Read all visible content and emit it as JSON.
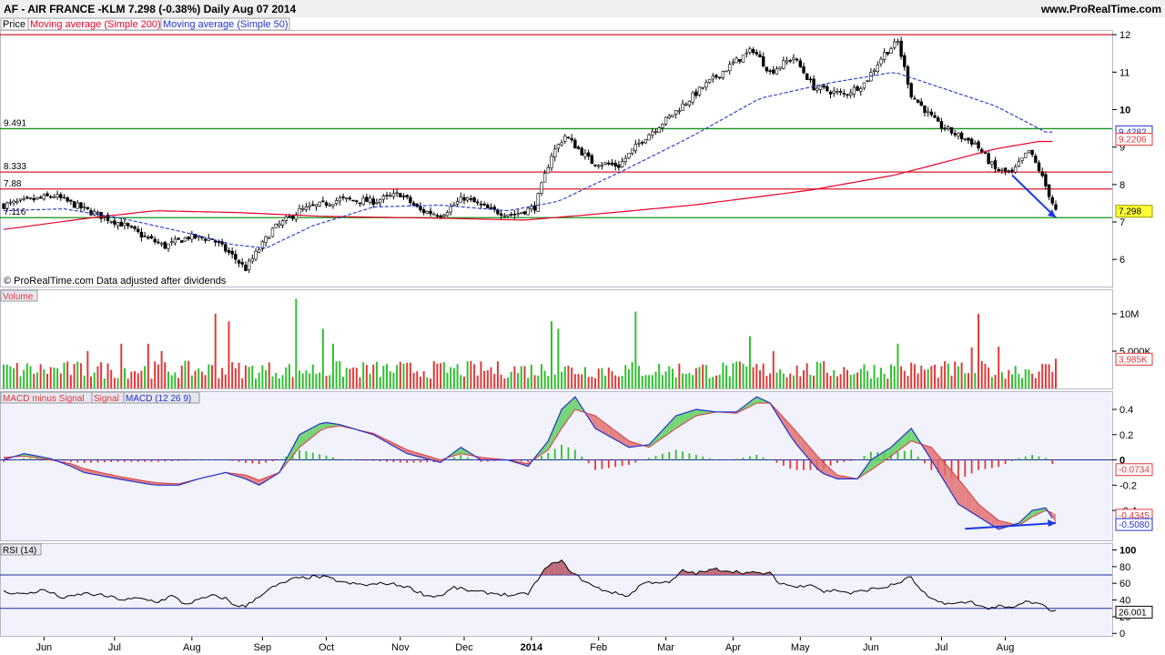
{
  "header": {
    "title": "AF - AIR FRANCE -KLM     7.298 (-0.38%)     Daily  Aug 07 2014",
    "site": "www.ProRealTime.com",
    "legend": [
      "Price",
      "Moving average (Simple 200)",
      "Moving average (Simple 50)"
    ],
    "copyright": "© ProRealTime.com  Data adjusted after dividends"
  },
  "colors": {
    "ma200": "#e8002a",
    "ma50": "#2233cc",
    "up": "#2fc02f",
    "down": "#e03a3a",
    "panel_bg": "#f2f2fd",
    "level_red": "#d81b2a",
    "level_green": "#159315",
    "arrow": "#1a3ae0"
  },
  "chart_data": [
    {
      "name": "price",
      "type": "candlestick",
      "ylim": [
        5.3,
        12.1
      ],
      "y_ticks": [
        6,
        7,
        8,
        9,
        10,
        11,
        12
      ],
      "x_labels": [
        "Jun",
        "Jul",
        "Aug",
        "Sep",
        "Oct",
        "Nov",
        "Dec",
        "2014",
        "Feb",
        "Mar",
        "Apr",
        "May",
        "Jun",
        "Jul",
        "Aug"
      ],
      "anchors": [
        [
          0,
          7.45
        ],
        [
          15,
          7.7
        ],
        [
          25,
          7.3
        ],
        [
          35,
          6.95
        ],
        [
          42,
          6.6
        ],
        [
          48,
          6.35
        ],
        [
          55,
          6.6
        ],
        [
          62,
          6.55
        ],
        [
          68,
          6.1
        ],
        [
          72,
          5.75
        ],
        [
          75,
          6.15
        ],
        [
          80,
          6.8
        ],
        [
          88,
          7.3
        ],
        [
          100,
          7.6
        ],
        [
          110,
          7.55
        ],
        [
          118,
          7.75
        ],
        [
          124,
          7.3
        ],
        [
          130,
          7.2
        ],
        [
          137,
          7.65
        ],
        [
          145,
          7.3
        ],
        [
          152,
          7.2
        ],
        [
          158,
          7.4
        ],
        [
          163,
          8.8
        ],
        [
          167,
          9.3
        ],
        [
          175,
          8.6
        ],
        [
          183,
          8.5
        ],
        [
          190,
          9.2
        ],
        [
          198,
          9.8
        ],
        [
          208,
          10.6
        ],
        [
          218,
          11.3
        ],
        [
          223,
          11.6
        ],
        [
          228,
          11.0
        ],
        [
          235,
          11.4
        ],
        [
          241,
          10.6
        ],
        [
          250,
          10.4
        ],
        [
          256,
          10.7
        ],
        [
          262,
          11.5
        ],
        [
          266,
          11.8
        ],
        [
          270,
          10.4
        ],
        [
          278,
          9.6
        ],
        [
          284,
          9.3
        ],
        [
          289,
          9.1
        ],
        [
          295,
          8.4
        ],
        [
          300,
          8.3
        ],
        [
          305,
          8.9
        ],
        [
          308,
          8.4
        ],
        [
          313,
          7.3
        ]
      ],
      "ma200": [
        [
          0,
          6.8
        ],
        [
          25,
          7.1
        ],
        [
          45,
          7.3
        ],
        [
          70,
          7.25
        ],
        [
          95,
          7.15
        ],
        [
          130,
          7.1
        ],
        [
          155,
          7.05
        ],
        [
          175,
          7.2
        ],
        [
          205,
          7.45
        ],
        [
          240,
          7.85
        ],
        [
          265,
          8.25
        ],
        [
          280,
          8.6
        ],
        [
          295,
          8.95
        ],
        [
          308,
          9.15
        ]
      ],
      "ma50": [
        [
          0,
          7.3
        ],
        [
          18,
          7.35
        ],
        [
          35,
          7.1
        ],
        [
          55,
          6.7
        ],
        [
          68,
          6.4
        ],
        [
          78,
          6.3
        ],
        [
          92,
          6.9
        ],
        [
          110,
          7.4
        ],
        [
          130,
          7.45
        ],
        [
          150,
          7.3
        ],
        [
          165,
          7.55
        ],
        [
          185,
          8.4
        ],
        [
          205,
          9.3
        ],
        [
          225,
          10.3
        ],
        [
          245,
          10.7
        ],
        [
          265,
          11.0
        ],
        [
          275,
          10.7
        ],
        [
          295,
          10.1
        ],
        [
          310,
          9.4
        ]
      ],
      "levels": [
        {
          "price": 12.0,
          "color": "red"
        },
        {
          "price": 9.491,
          "label": "9.491",
          "color": "green"
        },
        {
          "price": 8.333,
          "label": "8.333",
          "color": "red"
        },
        {
          "price": 7.88,
          "label": "7.88",
          "color": "red"
        },
        {
          "price": 7.116,
          "label": "7.116",
          "color": "green"
        }
      ],
      "arrow": [
        [
          300,
          8.25
        ],
        [
          313,
          7.12
        ]
      ],
      "value_boxes": [
        {
          "value": "9.4282",
          "price": 9.42,
          "color": "blue"
        },
        {
          "value": "9.2206",
          "price": 9.22,
          "color": "red"
        },
        {
          "value": "7.298",
          "price": 7.298,
          "color": "yellow"
        }
      ]
    },
    {
      "name": "volume",
      "type": "bar",
      "title": "Volume",
      "ylim": [
        0,
        12800000
      ],
      "y_ticks": [
        [
          "10M",
          10000000
        ],
        [
          "5,000K",
          5000000
        ]
      ],
      "last_value": "3,985K",
      "spikes": [
        [
          25,
          5
        ],
        [
          35,
          6
        ],
        [
          43,
          6
        ],
        [
          47,
          5
        ],
        [
          63,
          10
        ],
        [
          67,
          9
        ],
        [
          87,
          12
        ],
        [
          95,
          8
        ],
        [
          98,
          6
        ],
        [
          163,
          9
        ],
        [
          165,
          8
        ],
        [
          188,
          10.3
        ],
        [
          222,
          7
        ],
        [
          229,
          5
        ],
        [
          266,
          6
        ],
        [
          290,
          10
        ],
        [
          288,
          5.5
        ],
        [
          296,
          5.6
        ]
      ],
      "volume_last": 3985000
    },
    {
      "name": "macd",
      "type": "line",
      "title": "MACD minus Signal Signal MACD (12 26 9)",
      "legend": [
        "MACD minus Signal",
        "Signal",
        "MACD (12 26 9)"
      ],
      "ylim": [
        -0.63,
        0.53
      ],
      "y_ticks": [
        0.4,
        0.2,
        0,
        -0.2,
        -0.4
      ],
      "macd": [
        [
          0,
          0.0
        ],
        [
          6,
          0.05
        ],
        [
          14,
          0.01
        ],
        [
          20,
          -0.05
        ],
        [
          24,
          -0.1
        ],
        [
          34,
          -0.15
        ],
        [
          45,
          -0.2
        ],
        [
          52,
          -0.2
        ],
        [
          58,
          -0.15
        ],
        [
          66,
          -0.1
        ],
        [
          72,
          -0.15
        ],
        [
          76,
          -0.2
        ],
        [
          82,
          -0.1
        ],
        [
          88,
          0.2
        ],
        [
          95,
          0.3
        ],
        [
          100,
          0.28
        ],
        [
          110,
          0.2
        ],
        [
          120,
          0.05
        ],
        [
          130,
          -0.02
        ],
        [
          136,
          0.1
        ],
        [
          142,
          0.0
        ],
        [
          150,
          0.0
        ],
        [
          156,
          -0.05
        ],
        [
          162,
          0.15
        ],
        [
          166,
          0.4
        ],
        [
          170,
          0.5
        ],
        [
          176,
          0.25
        ],
        [
          186,
          0.1
        ],
        [
          192,
          0.12
        ],
        [
          200,
          0.35
        ],
        [
          206,
          0.4
        ],
        [
          212,
          0.38
        ],
        [
          218,
          0.38
        ],
        [
          224,
          0.5
        ],
        [
          228,
          0.45
        ],
        [
          235,
          0.15
        ],
        [
          243,
          -0.1
        ],
        [
          248,
          -0.15
        ],
        [
          254,
          -0.15
        ],
        [
          258,
          0.0
        ],
        [
          264,
          0.1
        ],
        [
          270,
          0.25
        ],
        [
          276,
          0.0
        ],
        [
          284,
          -0.35
        ],
        [
          290,
          -0.45
        ],
        [
          296,
          -0.55
        ],
        [
          302,
          -0.5
        ],
        [
          306,
          -0.4
        ],
        [
          310,
          -0.38
        ],
        [
          313,
          -0.5
        ]
      ],
      "signal": [
        [
          0,
          0.02
        ],
        [
          6,
          0.03
        ],
        [
          14,
          0.0
        ],
        [
          20,
          -0.03
        ],
        [
          24,
          -0.07
        ],
        [
          34,
          -0.13
        ],
        [
          45,
          -0.18
        ],
        [
          52,
          -0.19
        ],
        [
          58,
          -0.15
        ],
        [
          66,
          -0.1
        ],
        [
          72,
          -0.12
        ],
        [
          76,
          -0.16
        ],
        [
          82,
          -0.1
        ],
        [
          88,
          0.1
        ],
        [
          95,
          0.25
        ],
        [
          100,
          0.27
        ],
        [
          110,
          0.21
        ],
        [
          120,
          0.08
        ],
        [
          130,
          0.0
        ],
        [
          136,
          0.05
        ],
        [
          142,
          0.02
        ],
        [
          150,
          0.0
        ],
        [
          156,
          -0.03
        ],
        [
          162,
          0.08
        ],
        [
          166,
          0.25
        ],
        [
          170,
          0.4
        ],
        [
          176,
          0.35
        ],
        [
          186,
          0.15
        ],
        [
          192,
          0.1
        ],
        [
          200,
          0.25
        ],
        [
          206,
          0.35
        ],
        [
          212,
          0.38
        ],
        [
          218,
          0.37
        ],
        [
          224,
          0.45
        ],
        [
          228,
          0.45
        ],
        [
          235,
          0.25
        ],
        [
          243,
          0.0
        ],
        [
          248,
          -0.12
        ],
        [
          254,
          -0.15
        ],
        [
          258,
          -0.08
        ],
        [
          264,
          0.03
        ],
        [
          270,
          0.15
        ],
        [
          276,
          0.1
        ],
        [
          284,
          -0.15
        ],
        [
          290,
          -0.35
        ],
        [
          296,
          -0.48
        ],
        [
          302,
          -0.52
        ],
        [
          306,
          -0.45
        ],
        [
          310,
          -0.4
        ],
        [
          313,
          -0.43
        ]
      ],
      "arrow": [
        [
          286,
          -0.545
        ],
        [
          313,
          -0.5
        ]
      ],
      "value_boxes": [
        {
          "value": "-0.0734",
          "level": -0.0734,
          "color": "red"
        },
        {
          "value": "-0.4345",
          "level": -0.4345,
          "color": "red"
        },
        {
          "value": "-0.5080",
          "level": -0.508,
          "color": "blue"
        }
      ]
    },
    {
      "name": "rsi",
      "type": "line",
      "title": "RSI (14)",
      "ylim": [
        -3,
        106
      ],
      "y_ticks": [
        100,
        80,
        60,
        40,
        20,
        0
      ],
      "levels": [
        70,
        30
      ],
      "rsi": [
        [
          0,
          50
        ],
        [
          6,
          47
        ],
        [
          12,
          52
        ],
        [
          18,
          42
        ],
        [
          24,
          48
        ],
        [
          30,
          45
        ],
        [
          36,
          40
        ],
        [
          40,
          42
        ],
        [
          46,
          38
        ],
        [
          50,
          45
        ],
        [
          54,
          35
        ],
        [
          58,
          40
        ],
        [
          62,
          45
        ],
        [
          66,
          42
        ],
        [
          68,
          35
        ],
        [
          72,
          32
        ],
        [
          76,
          45
        ],
        [
          80,
          55
        ],
        [
          86,
          65
        ],
        [
          92,
          68
        ],
        [
          96,
          67
        ],
        [
          102,
          60
        ],
        [
          108,
          58
        ],
        [
          114,
          60
        ],
        [
          120,
          56
        ],
        [
          126,
          45
        ],
        [
          130,
          45
        ],
        [
          134,
          55
        ],
        [
          140,
          50
        ],
        [
          146,
          48
        ],
        [
          152,
          45
        ],
        [
          156,
          48
        ],
        [
          160,
          70
        ],
        [
          162,
          82
        ],
        [
          166,
          86
        ],
        [
          170,
          70
        ],
        [
          176,
          55
        ],
        [
          182,
          48
        ],
        [
          186,
          45
        ],
        [
          190,
          60
        ],
        [
          194,
          62
        ],
        [
          198,
          60
        ],
        [
          202,
          75
        ],
        [
          206,
          72
        ],
        [
          212,
          77
        ],
        [
          216,
          75
        ],
        [
          220,
          73
        ],
        [
          224,
          72
        ],
        [
          228,
          72
        ],
        [
          230,
          62
        ],
        [
          236,
          55
        ],
        [
          240,
          60
        ],
        [
          244,
          50
        ],
        [
          248,
          52
        ],
        [
          252,
          48
        ],
        [
          258,
          53
        ],
        [
          262,
          55
        ],
        [
          266,
          60
        ],
        [
          270,
          68
        ],
        [
          272,
          55
        ],
        [
          276,
          40
        ],
        [
          282,
          35
        ],
        [
          288,
          38
        ],
        [
          292,
          30
        ],
        [
          296,
          32
        ],
        [
          300,
          30
        ],
        [
          304,
          38
        ],
        [
          308,
          35
        ],
        [
          313,
          26
        ]
      ],
      "last_value": "26.001"
    }
  ]
}
